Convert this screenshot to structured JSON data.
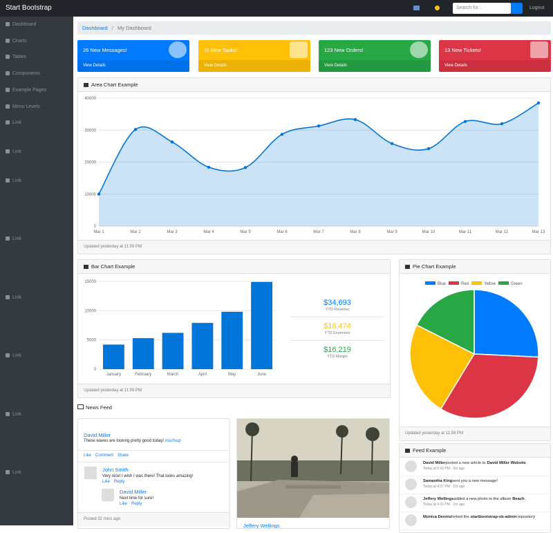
{
  "navbar": {
    "brand": "Start Bootstrap",
    "search_placeholder": "Search for...",
    "logout": "Logout"
  },
  "sidebar": [
    "Dashboard",
    "Charts",
    "Tables",
    "Components",
    "Example Pages",
    "Menu Levels",
    "Link",
    "Link",
    "Link",
    "Link",
    "Link",
    "Link",
    "Link",
    "Link"
  ],
  "breadcrumb": [
    "Dashboard",
    "My Dashboard"
  ],
  "cards": [
    {
      "text": "26 New Messages!",
      "link": "View Details",
      "color": "#007bff"
    },
    {
      "text": "11 New Tasks!",
      "link": "View Details",
      "color": "#ffc107"
    },
    {
      "text": "123 New Orders!",
      "link": "View Details",
      "color": "#28a745"
    },
    {
      "text": "13 New Tickets!",
      "link": "View Details",
      "color": "#dc3545"
    }
  ],
  "chart_data": [
    {
      "type": "line",
      "title": "Area Chart Example",
      "footer": "Updated yesterday at 11:59 PM",
      "categories": [
        "Mar 1",
        "Mar 2",
        "Mar 3",
        "Mar 4",
        "Mar 5",
        "Mar 6",
        "Mar 7",
        "Mar 8",
        "Mar 9",
        "Mar 10",
        "Mar 11",
        "Mar 12",
        "Mar 13"
      ],
      "values": [
        10000,
        30200,
        26300,
        18400,
        18300,
        28700,
        31300,
        33300,
        25800,
        24200,
        32700,
        32000,
        38500
      ],
      "color": "#0275d8",
      "ylim": [
        0,
        40000
      ],
      "yticks": [
        0,
        10000,
        20000,
        30000,
        40000
      ],
      "grid": true
    },
    {
      "type": "bar",
      "title": "Bar Chart Example",
      "footer": "Updated yesterday at 11:59 PM",
      "categories": [
        "January",
        "February",
        "March",
        "April",
        "May",
        "June"
      ],
      "values": [
        4200,
        5300,
        6200,
        7900,
        9800,
        14900
      ],
      "color": "#0275d8",
      "ylim": [
        0,
        15000
      ],
      "yticks": [
        0,
        5000,
        10000,
        15000
      ],
      "grid": true
    },
    {
      "type": "pie",
      "title": "Pie Chart Example",
      "footer": "Updated yesterday at 11:59 PM",
      "categories": [
        "Blue",
        "Red",
        "Yellow",
        "Green"
      ],
      "values": [
        12.21,
        15.58,
        11.25,
        8.32
      ],
      "colors": [
        "#007bff",
        "#dc3545",
        "#ffc107",
        "#28a745"
      ]
    }
  ],
  "bar_stats": [
    {
      "value": "$34,693",
      "label": "YTD Revenue",
      "color": "#007bff"
    },
    {
      "value": "$18,474",
      "label": "YTD Expenses",
      "color": "#ffc107"
    },
    {
      "value": "$16,219",
      "label": "YTD Margin",
      "color": "#28a745"
    }
  ],
  "news_feed": {
    "title": "News Feed",
    "post": {
      "author": "David Miller",
      "text": "These waves are looking pretty good today!",
      "tag": "#surfsup",
      "actions": [
        "Like",
        "Comment",
        "Share"
      ],
      "comment": {
        "author": "John Smith",
        "text": "Very nice! I wish I was there! That looks amazing!",
        "actions": [
          "Like",
          "Reply"
        ]
      },
      "reply": {
        "author": "David Miller",
        "text": "Next time for sure!",
        "actions": [
          "Like",
          "Reply"
        ]
      },
      "footer": "Posted 32 mins ago"
    },
    "photo_post": {
      "author": "Jeffery Wellings"
    }
  },
  "feed": {
    "title": "Feed Example",
    "items": [
      {
        "name": "David Miller",
        "action": "posted a new article to",
        "target": "David Miller Website",
        "tail": ".",
        "time": "Today at 5:43 PM - 5m ago"
      },
      {
        "name": "Samantha King",
        "action": "sent you a new message!",
        "time": "Today at 4:37 PM - 1hr ago"
      },
      {
        "name": "Jeffery Wellings",
        "action": "added a new photo to the album",
        "target": "Beach",
        "tail": ".",
        "time": "Today at 4:31 PM - 1hr ago"
      },
      {
        "name": "Monica Dennis",
        "action": "forked the",
        "target": "startbootstrap-sb-admin",
        "tail": "repository"
      }
    ]
  }
}
